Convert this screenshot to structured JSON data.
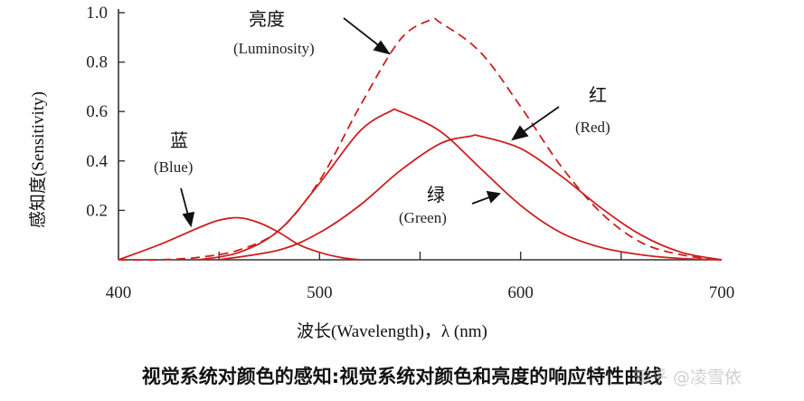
{
  "chart_data": {
    "type": "line",
    "xlabel": "波长(Wavelength)，λ (nm)",
    "ylabel": "感知度(Sensitivity)",
    "xlim": [
      400,
      700
    ],
    "ylim": [
      0,
      1.0
    ],
    "x_ticks": [
      "400",
      "500",
      "600",
      "700"
    ],
    "y_ticks": [
      "0.2",
      "0.4",
      "0.6",
      "0.8",
      "1.0"
    ],
    "grid": false,
    "colors": {
      "curves": "#cc1f1f",
      "axis": "#333333"
    },
    "series": [
      {
        "name": "Luminosity",
        "label_zh": "亮度",
        "label_en": "(Luminosity)",
        "style": "dashed",
        "x": [
          400,
          420,
          440,
          460,
          480,
          500,
          520,
          540,
          555,
          560,
          580,
          600,
          620,
          640,
          660,
          680,
          700
        ],
        "values": [
          0.0,
          0.0,
          0.01,
          0.04,
          0.12,
          0.32,
          0.62,
          0.89,
          0.97,
          0.96,
          0.84,
          0.62,
          0.38,
          0.19,
          0.07,
          0.02,
          0.0
        ]
      },
      {
        "name": "Blue",
        "label_zh": "蓝",
        "label_en": "(Blue)",
        "style": "solid",
        "x": [
          400,
          420,
          440,
          450,
          460,
          470,
          480,
          490,
          500,
          510,
          520
        ],
        "values": [
          0.0,
          0.06,
          0.13,
          0.16,
          0.17,
          0.15,
          0.11,
          0.06,
          0.03,
          0.01,
          0.0
        ]
      },
      {
        "name": "Green",
        "label_zh": "绿",
        "label_en": "(Green)",
        "style": "solid",
        "x": [
          440,
          460,
          480,
          500,
          520,
          535,
          540,
          560,
          580,
          600,
          620,
          640,
          660,
          680,
          700
        ],
        "values": [
          0.0,
          0.03,
          0.12,
          0.31,
          0.52,
          0.6,
          0.6,
          0.52,
          0.37,
          0.22,
          0.11,
          0.05,
          0.02,
          0.005,
          0.0
        ]
      },
      {
        "name": "Red",
        "label_zh": "红",
        "label_en": "(Red)",
        "style": "solid",
        "x": [
          450,
          480,
          500,
          520,
          540,
          560,
          575,
          580,
          600,
          620,
          640,
          660,
          680,
          700
        ],
        "values": [
          0.0,
          0.04,
          0.11,
          0.22,
          0.36,
          0.47,
          0.5,
          0.5,
          0.45,
          0.34,
          0.21,
          0.1,
          0.03,
          0.0
        ]
      }
    ]
  },
  "caption": "视觉系统对颜色的感知:视觉系统对颜色和亮度的响应特性曲线",
  "watermark": "知乎 @凌雪依"
}
